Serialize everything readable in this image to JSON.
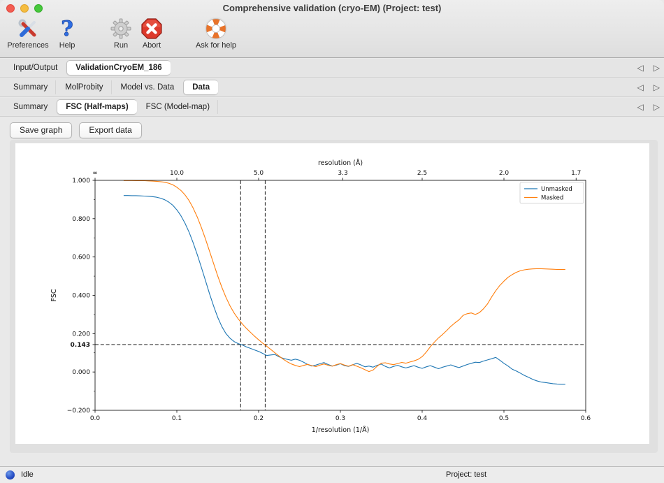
{
  "window": {
    "title": "Comprehensive validation (cryo-EM) (Project: test)"
  },
  "toolbar": {
    "preferences": "Preferences",
    "help": "Help",
    "run": "Run",
    "abort": "Abort",
    "ask_for_help": "Ask for help"
  },
  "tabs": {
    "row1": [
      {
        "label": "Input/Output"
      },
      {
        "label": "ValidationCryoEM_186"
      }
    ],
    "row2": [
      {
        "label": "Summary"
      },
      {
        "label": "MolProbity"
      },
      {
        "label": "Model vs. Data"
      },
      {
        "label": "Data"
      }
    ],
    "row3": [
      {
        "label": "Summary"
      },
      {
        "label": "FSC (Half-maps)"
      },
      {
        "label": "FSC (Model-map)"
      }
    ]
  },
  "icons": {
    "scroll_left": "◁",
    "scroll_right": "▷"
  },
  "graph_actions": {
    "save": "Save graph",
    "export": "Export data"
  },
  "status_bar": {
    "status": "Idle",
    "project": "Project: test"
  },
  "chart_data": {
    "type": "line",
    "xlabel": "1/resolution (1/Å)",
    "ylabel": "FSC",
    "xlim": [
      0.0,
      0.6
    ],
    "ylim": [
      -0.2,
      1.0
    ],
    "grid": false,
    "legend_position": "upper right",
    "top_axis": {
      "label": "resolution (Å)",
      "ticks": [
        {
          "pos": 0.0,
          "label": "∞"
        },
        {
          "pos": 0.1,
          "label": "10.0"
        },
        {
          "pos": 0.2,
          "label": "5.0"
        },
        {
          "pos": 0.30303,
          "label": "3.3"
        },
        {
          "pos": 0.4,
          "label": "2.5"
        },
        {
          "pos": 0.5,
          "label": "2.0"
        },
        {
          "pos": 0.58824,
          "label": "1.7"
        }
      ]
    },
    "xticks": [
      {
        "v": 0.0,
        "label": "0.0"
      },
      {
        "v": 0.1,
        "label": "0.1"
      },
      {
        "v": 0.2,
        "label": "0.2"
      },
      {
        "v": 0.3,
        "label": "0.3"
      },
      {
        "v": 0.4,
        "label": "0.4"
      },
      {
        "v": 0.5,
        "label": "0.5"
      },
      {
        "v": 0.6,
        "label": "0.6"
      }
    ],
    "yticks": [
      {
        "v": 1.0,
        "label": "1.000",
        "bold": false
      },
      {
        "v": 0.8,
        "label": "0.800",
        "bold": false
      },
      {
        "v": 0.6,
        "label": "0.600",
        "bold": false
      },
      {
        "v": 0.4,
        "label": "0.400",
        "bold": false
      },
      {
        "v": 0.2,
        "label": "0.200",
        "bold": false
      },
      {
        "v": 0.143,
        "label": "0.143",
        "bold": true
      },
      {
        "v": 0.0,
        "label": "0.000",
        "bold": false
      },
      {
        "v": -0.2,
        "label": "−0.200",
        "bold": false
      }
    ],
    "y_minor_ticks": [
      0.9,
      0.7,
      0.5,
      0.3,
      0.1,
      -0.1
    ],
    "threshold_hline": 0.143,
    "vlines": [
      0.178,
      0.208
    ],
    "series": [
      {
        "name": "Unmasked",
        "color": "#1f77b4",
        "x0": 0.035,
        "dx": 0.005,
        "values": [
          0.921,
          0.921,
          0.92,
          0.92,
          0.919,
          0.918,
          0.917,
          0.915,
          0.912,
          0.907,
          0.899,
          0.887,
          0.87,
          0.846,
          0.815,
          0.776,
          0.729,
          0.674,
          0.612,
          0.546,
          0.477,
          0.408,
          0.343,
          0.285,
          0.237,
          0.201,
          0.176,
          0.159,
          0.148,
          0.141,
          0.131,
          0.123,
          0.115,
          0.107,
          0.097,
          0.086,
          0.089,
          0.091,
          0.079,
          0.071,
          0.066,
          0.061,
          0.067,
          0.061,
          0.051,
          0.039,
          0.031,
          0.036,
          0.043,
          0.049,
          0.039,
          0.031,
          0.036,
          0.043,
          0.033,
          0.029,
          0.037,
          0.045,
          0.037,
          0.027,
          0.031,
          0.025,
          0.035,
          0.041,
          0.029,
          0.021,
          0.029,
          0.035,
          0.027,
          0.021,
          0.027,
          0.033,
          0.025,
          0.019,
          0.027,
          0.033,
          0.025,
          0.017,
          0.025,
          0.031,
          0.037,
          0.029,
          0.023,
          0.031,
          0.039,
          0.045,
          0.051,
          0.049,
          0.057,
          0.063,
          0.069,
          0.076,
          0.061,
          0.045,
          0.031,
          0.015,
          0.005,
          -0.006,
          -0.018,
          -0.028,
          -0.038,
          -0.046,
          -0.052,
          -0.055,
          -0.058,
          -0.061,
          -0.063,
          -0.064,
          -0.064
        ]
      },
      {
        "name": "Masked",
        "color": "#ff7f0e",
        "x0": 0.035,
        "dx": 0.005,
        "values": [
          0.999,
          0.999,
          0.999,
          0.998,
          0.998,
          0.998,
          0.997,
          0.996,
          0.995,
          0.993,
          0.99,
          0.985,
          0.977,
          0.964,
          0.947,
          0.924,
          0.894,
          0.855,
          0.808,
          0.754,
          0.694,
          0.63,
          0.565,
          0.501,
          0.442,
          0.39,
          0.345,
          0.308,
          0.277,
          0.251,
          0.228,
          0.207,
          0.187,
          0.168,
          0.15,
          0.134,
          0.117,
          0.1,
          0.083,
          0.067,
          0.053,
          0.042,
          0.034,
          0.028,
          0.034,
          0.04,
          0.033,
          0.028,
          0.036,
          0.042,
          0.035,
          0.03,
          0.038,
          0.044,
          0.036,
          0.03,
          0.038,
          0.03,
          0.022,
          0.012,
          0.002,
          0.01,
          0.03,
          0.046,
          0.048,
          0.042,
          0.038,
          0.044,
          0.05,
          0.046,
          0.052,
          0.058,
          0.066,
          0.08,
          0.104,
          0.132,
          0.156,
          0.178,
          0.196,
          0.216,
          0.238,
          0.256,
          0.272,
          0.295,
          0.304,
          0.308,
          0.3,
          0.31,
          0.33,
          0.356,
          0.392,
          0.424,
          0.452,
          0.474,
          0.494,
          0.508,
          0.52,
          0.528,
          0.533,
          0.536,
          0.538,
          0.539,
          0.539,
          0.538,
          0.537,
          0.536,
          0.535,
          0.535,
          0.535
        ]
      }
    ]
  }
}
